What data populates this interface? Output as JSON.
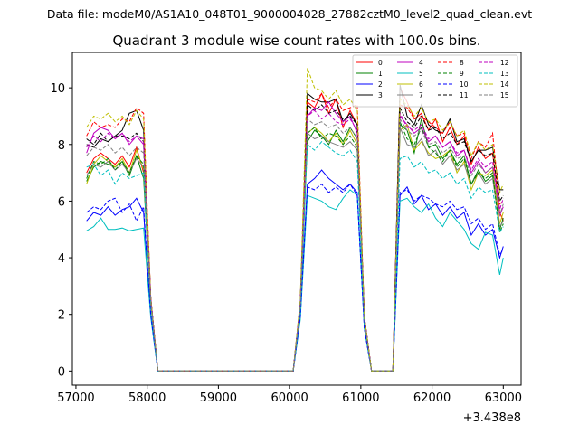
{
  "header": {
    "file_text": "Data file: modeM0/AS1A10_048T01_9000004028_27882cztM0_level2_quad_clean.evt"
  },
  "chart_data": {
    "type": "line",
    "title": "Quadrant 3 module wise count rates with 100.0s bins.",
    "xlabel": "",
    "ylabel": "",
    "x_offset_label": "+3.438e8",
    "xlim": [
      56950,
      63250
    ],
    "ylim": [
      -0.5,
      11.25
    ],
    "x_ticks": [
      57000,
      58000,
      59000,
      60000,
      61000,
      62000,
      63000
    ],
    "x_tick_labels": [
      "57000",
      "58000",
      "59000",
      "60000",
      "61000",
      "62000",
      "63000"
    ],
    "y_ticks": [
      0,
      2,
      4,
      6,
      8,
      10
    ],
    "y_tick_labels": [
      "0",
      "2",
      "4",
      "6",
      "8",
      "10"
    ],
    "x": [
      57150,
      57250,
      57350,
      57450,
      57550,
      57650,
      57750,
      57850,
      57950,
      58050,
      58150,
      58250,
      58350,
      58450,
      58550,
      58650,
      58750,
      58850,
      58950,
      59050,
      59150,
      59250,
      59350,
      59450,
      59550,
      59650,
      59750,
      59850,
      59950,
      60050,
      60150,
      60250,
      60350,
      60450,
      60550,
      60650,
      60750,
      60850,
      60950,
      61050,
      61150,
      61250,
      61350,
      61450,
      61550,
      61650,
      61750,
      61850,
      61950,
      62050,
      62150,
      62250,
      62350,
      62450,
      62550,
      62650,
      62750,
      62850,
      62950,
      63000
    ],
    "series": [
      {
        "name": "0",
        "color": "#ff0000",
        "dash": false,
        "values": [
          7.0,
          7.5,
          7.7,
          7.5,
          7.3,
          7.6,
          7.2,
          7.9,
          7.0,
          2.5,
          0,
          0,
          0,
          0,
          0,
          0,
          0,
          0,
          0,
          0,
          0,
          0,
          0,
          0,
          0,
          0,
          0,
          0,
          0,
          0,
          2.3,
          9.5,
          9.3,
          9.8,
          9.1,
          9.6,
          8.6,
          9.2,
          8.7,
          1.9,
          0,
          0,
          0,
          0,
          10.0,
          9.5,
          8.9,
          9.1,
          8.5,
          8.9,
          8.1,
          8.6,
          8.0,
          8.3,
          7.3,
          7.9,
          7.5,
          7.7,
          5.6,
          5.3
        ]
      },
      {
        "name": "1",
        "color": "#008000",
        "dash": false,
        "values": [
          6.7,
          7.2,
          7.4,
          7.3,
          7.2,
          7.4,
          6.9,
          7.6,
          6.8,
          2.4,
          0,
          0,
          0,
          0,
          0,
          0,
          0,
          0,
          0,
          0,
          0,
          0,
          0,
          0,
          0,
          0,
          0,
          0,
          0,
          0,
          2.2,
          8.1,
          8.5,
          8.3,
          8.0,
          8.5,
          8.1,
          8.6,
          8.2,
          1.8,
          0,
          0,
          0,
          0,
          8.7,
          8.5,
          7.7,
          8.9,
          7.9,
          8.0,
          7.5,
          7.8,
          7.3,
          7.6,
          6.6,
          7.1,
          6.7,
          6.9,
          5.0,
          5.4
        ]
      },
      {
        "name": "2",
        "color": "#0000ff",
        "dash": false,
        "values": [
          5.3,
          5.6,
          5.5,
          5.8,
          5.5,
          5.7,
          5.8,
          6.1,
          5.6,
          2.0,
          0,
          0,
          0,
          0,
          0,
          0,
          0,
          0,
          0,
          0,
          0,
          0,
          0,
          0,
          0,
          0,
          0,
          0,
          0,
          0,
          1.9,
          6.6,
          6.8,
          7.1,
          6.8,
          6.6,
          6.4,
          6.6,
          6.3,
          1.5,
          0,
          0,
          0,
          0,
          6.2,
          6.5,
          5.9,
          6.2,
          5.7,
          5.9,
          5.5,
          5.8,
          5.4,
          5.6,
          4.8,
          5.2,
          4.8,
          5.0,
          4.0,
          4.4
        ]
      },
      {
        "name": "3",
        "color": "#000000",
        "dash": false,
        "values": [
          8.0,
          7.9,
          8.2,
          8.1,
          8.3,
          8.5,
          9.1,
          9.2,
          8.5,
          2.6,
          0,
          0,
          0,
          0,
          0,
          0,
          0,
          0,
          0,
          0,
          0,
          0,
          0,
          0,
          0,
          0,
          0,
          0,
          0,
          0,
          2.4,
          9.8,
          9.6,
          9.5,
          9.5,
          9.6,
          8.8,
          9.1,
          8.7,
          1.9,
          0,
          0,
          0,
          0,
          10.1,
          9.0,
          8.7,
          9.4,
          8.7,
          8.5,
          8.4,
          8.9,
          8.1,
          8.2,
          7.4,
          7.8,
          7.8,
          7.9,
          6.4,
          6.4
        ]
      },
      {
        "name": "4",
        "color": "#bf00bf",
        "dash": false,
        "values": [
          7.7,
          8.4,
          8.6,
          8.5,
          8.2,
          8.4,
          8.0,
          8.3,
          8.0,
          2.6,
          0,
          0,
          0,
          0,
          0,
          0,
          0,
          0,
          0,
          0,
          0,
          0,
          0,
          0,
          0,
          0,
          0,
          0,
          0,
          0,
          2.3,
          9.0,
          9.3,
          9.2,
          9.5,
          9.1,
          8.8,
          9.0,
          8.4,
          1.9,
          0,
          0,
          0,
          0,
          9.0,
          8.7,
          8.4,
          8.6,
          8.1,
          8.3,
          7.9,
          8.1,
          7.6,
          7.8,
          7.0,
          7.4,
          7.0,
          7.2,
          5.5,
          5.8
        ]
      },
      {
        "name": "5",
        "color": "#00bfbf",
        "dash": false,
        "values": [
          4.95,
          5.1,
          5.4,
          5.0,
          5.0,
          5.05,
          4.95,
          5.0,
          5.05,
          1.9,
          0,
          0,
          0,
          0,
          0,
          0,
          0,
          0,
          0,
          0,
          0,
          0,
          0,
          0,
          0,
          0,
          0,
          0,
          0,
          0,
          1.8,
          6.2,
          6.1,
          6.0,
          5.8,
          5.7,
          6.1,
          6.4,
          6.2,
          1.5,
          0,
          0,
          0,
          0,
          6.0,
          6.1,
          5.8,
          5.6,
          5.9,
          5.4,
          5.1,
          5.6,
          5.3,
          5.0,
          4.5,
          4.3,
          4.9,
          4.8,
          3.4,
          4.0
        ]
      },
      {
        "name": "6",
        "color": "#bfbf00",
        "dash": false,
        "values": [
          6.6,
          7.3,
          7.6,
          7.4,
          7.2,
          7.5,
          7.0,
          7.8,
          7.1,
          2.4,
          0,
          0,
          0,
          0,
          0,
          0,
          0,
          0,
          0,
          0,
          0,
          0,
          0,
          0,
          0,
          0,
          0,
          0,
          0,
          0,
          2.2,
          8.4,
          8.6,
          8.4,
          8.1,
          8.4,
          8.0,
          8.5,
          8.0,
          1.8,
          0,
          0,
          0,
          0,
          8.5,
          8.7,
          7.8,
          8.1,
          7.7,
          7.5,
          7.6,
          7.8,
          7.0,
          7.4,
          6.4,
          7.0,
          6.9,
          7.1,
          5.2,
          5.6
        ]
      },
      {
        "name": "7",
        "color": "#808080",
        "dash": false,
        "values": [
          6.9,
          7.3,
          7.2,
          7.4,
          7.1,
          7.3,
          7.0,
          7.5,
          7.2,
          2.5,
          0,
          0,
          0,
          0,
          0,
          0,
          0,
          0,
          0,
          0,
          0,
          0,
          0,
          0,
          0,
          0,
          0,
          0,
          0,
          0,
          2.3,
          8.4,
          8.2,
          8.3,
          8.1,
          8.0,
          7.9,
          8.1,
          7.8,
          1.8,
          0,
          0,
          0,
          0,
          8.6,
          8.0,
          7.9,
          8.2,
          7.6,
          7.8,
          7.3,
          7.6,
          7.1,
          7.3,
          6.6,
          7.0,
          6.6,
          6.8,
          5.1,
          5.3
        ]
      },
      {
        "name": "8",
        "color": "#ff0000",
        "dash": true,
        "values": [
          8.3,
          8.8,
          8.6,
          8.7,
          8.6,
          8.9,
          8.8,
          9.3,
          9.1,
          2.6,
          0,
          0,
          0,
          0,
          0,
          0,
          0,
          0,
          0,
          0,
          0,
          0,
          0,
          0,
          0,
          0,
          0,
          0,
          0,
          0,
          2.4,
          9.6,
          9.5,
          9.8,
          9.3,
          9.6,
          9.2,
          9.3,
          9.4,
          1.9,
          0,
          0,
          0,
          0,
          9.4,
          9.3,
          8.9,
          9.0,
          8.8,
          8.6,
          8.4,
          8.8,
          8.3,
          8.4,
          7.5,
          8.1,
          7.9,
          8.4,
          5.9,
          6.0
        ]
      },
      {
        "name": "9",
        "color": "#008000",
        "dash": true,
        "values": [
          6.8,
          7.4,
          7.3,
          7.5,
          7.1,
          7.4,
          7.0,
          7.6,
          7.3,
          2.5,
          0,
          0,
          0,
          0,
          0,
          0,
          0,
          0,
          0,
          0,
          0,
          0,
          0,
          0,
          0,
          0,
          0,
          0,
          0,
          0,
          2.3,
          8.4,
          8.6,
          8.2,
          8.4,
          8.3,
          8.0,
          8.3,
          7.9,
          1.8,
          0,
          0,
          0,
          0,
          8.8,
          8.2,
          8.0,
          8.6,
          7.9,
          7.7,
          7.4,
          7.8,
          7.2,
          7.5,
          6.6,
          7.0,
          6.8,
          7.0,
          4.9,
          5.2
        ]
      },
      {
        "name": "10",
        "color": "#0000ff",
        "dash": true,
        "values": [
          5.6,
          5.8,
          5.7,
          6.0,
          6.1,
          5.6,
          5.9,
          5.3,
          5.8,
          2.0,
          0,
          0,
          0,
          0,
          0,
          0,
          0,
          0,
          0,
          0,
          0,
          0,
          0,
          0,
          0,
          0,
          0,
          0,
          0,
          0,
          1.9,
          6.5,
          6.4,
          6.6,
          6.3,
          6.5,
          6.3,
          6.6,
          6.2,
          1.5,
          0,
          0,
          0,
          0,
          6.3,
          6.4,
          6.0,
          6.2,
          6.1,
          5.9,
          5.8,
          6.0,
          5.7,
          5.8,
          5.2,
          5.4,
          5.0,
          5.2,
          4.1,
          4.3
        ]
      },
      {
        "name": "11",
        "color": "#000000",
        "dash": true,
        "values": [
          8.2,
          8.0,
          8.4,
          8.1,
          8.3,
          8.3,
          8.2,
          8.4,
          8.1,
          2.6,
          0,
          0,
          0,
          0,
          0,
          0,
          0,
          0,
          0,
          0,
          0,
          0,
          0,
          0,
          0,
          0,
          0,
          0,
          0,
          0,
          2.4,
          9.4,
          9.2,
          9.4,
          9.1,
          9.2,
          8.9,
          9.0,
          8.7,
          1.9,
          0,
          0,
          0,
          0,
          9.3,
          8.8,
          8.6,
          9.0,
          8.5,
          8.6,
          8.2,
          8.4,
          8.0,
          8.1,
          7.4,
          7.8,
          7.6,
          7.7,
          6.0,
          6.2
        ]
      },
      {
        "name": "12",
        "color": "#bf00bf",
        "dash": true,
        "values": [
          7.9,
          8.3,
          8.1,
          8.4,
          8.2,
          8.4,
          8.1,
          8.3,
          8.2,
          2.6,
          0,
          0,
          0,
          0,
          0,
          0,
          0,
          0,
          0,
          0,
          0,
          0,
          0,
          0,
          0,
          0,
          0,
          0,
          0,
          0,
          2.4,
          9.0,
          9.2,
          8.9,
          9.1,
          8.8,
          8.7,
          8.9,
          8.5,
          1.9,
          0,
          0,
          0,
          0,
          9.1,
          8.6,
          8.5,
          8.7,
          8.2,
          8.3,
          7.9,
          8.1,
          7.7,
          7.8,
          7.1,
          7.5,
          7.2,
          7.4,
          5.7,
          6.1
        ]
      },
      {
        "name": "13",
        "color": "#00bfbf",
        "dash": true,
        "values": [
          7.2,
          7.3,
          6.9,
          7.1,
          6.6,
          7.0,
          6.8,
          6.9,
          7.0,
          2.4,
          0,
          0,
          0,
          0,
          0,
          0,
          0,
          0,
          0,
          0,
          0,
          0,
          0,
          0,
          0,
          0,
          0,
          0,
          0,
          0,
          2.2,
          8.0,
          7.8,
          8.1,
          7.9,
          7.7,
          7.6,
          7.8,
          7.4,
          1.8,
          0,
          0,
          0,
          0,
          7.5,
          7.6,
          7.2,
          7.4,
          7.0,
          7.1,
          6.8,
          7.0,
          6.6,
          6.8,
          6.1,
          6.5,
          6.3,
          6.4,
          4.9,
          5.1
        ]
      },
      {
        "name": "14",
        "color": "#bfbf00",
        "dash": true,
        "values": [
          8.6,
          9.0,
          8.9,
          9.1,
          8.8,
          9.0,
          8.7,
          9.2,
          8.9,
          2.6,
          0,
          0,
          0,
          0,
          0,
          0,
          0,
          0,
          0,
          0,
          0,
          0,
          0,
          0,
          0,
          0,
          0,
          0,
          0,
          0,
          2.5,
          10.7,
          10.0,
          9.9,
          9.6,
          9.9,
          9.4,
          9.6,
          9.2,
          1.9,
          0,
          0,
          0,
          0,
          9.6,
          9.4,
          9.0,
          9.3,
          8.8,
          8.9,
          8.5,
          8.8,
          8.3,
          8.5,
          7.6,
          8.1,
          7.8,
          8.0,
          6.3,
          6.6
        ]
      },
      {
        "name": "15",
        "color": "#808080",
        "dash": true,
        "values": [
          7.6,
          7.9,
          7.8,
          8.0,
          7.7,
          7.9,
          7.6,
          7.9,
          7.7,
          2.5,
          0,
          0,
          0,
          0,
          0,
          0,
          0,
          0,
          0,
          0,
          0,
          0,
          0,
          0,
          0,
          0,
          0,
          0,
          0,
          0,
          2.3,
          8.9,
          8.7,
          8.8,
          8.6,
          8.7,
          8.4,
          8.6,
          8.2,
          1.8,
          0,
          0,
          0,
          0,
          8.9,
          8.5,
          8.3,
          8.5,
          8.0,
          8.1,
          7.7,
          7.9,
          7.5,
          7.6,
          6.9,
          7.3,
          7.0,
          7.2,
          5.5,
          5.9
        ]
      }
    ],
    "legend": {
      "position": "top-right",
      "columns": 4
    }
  }
}
